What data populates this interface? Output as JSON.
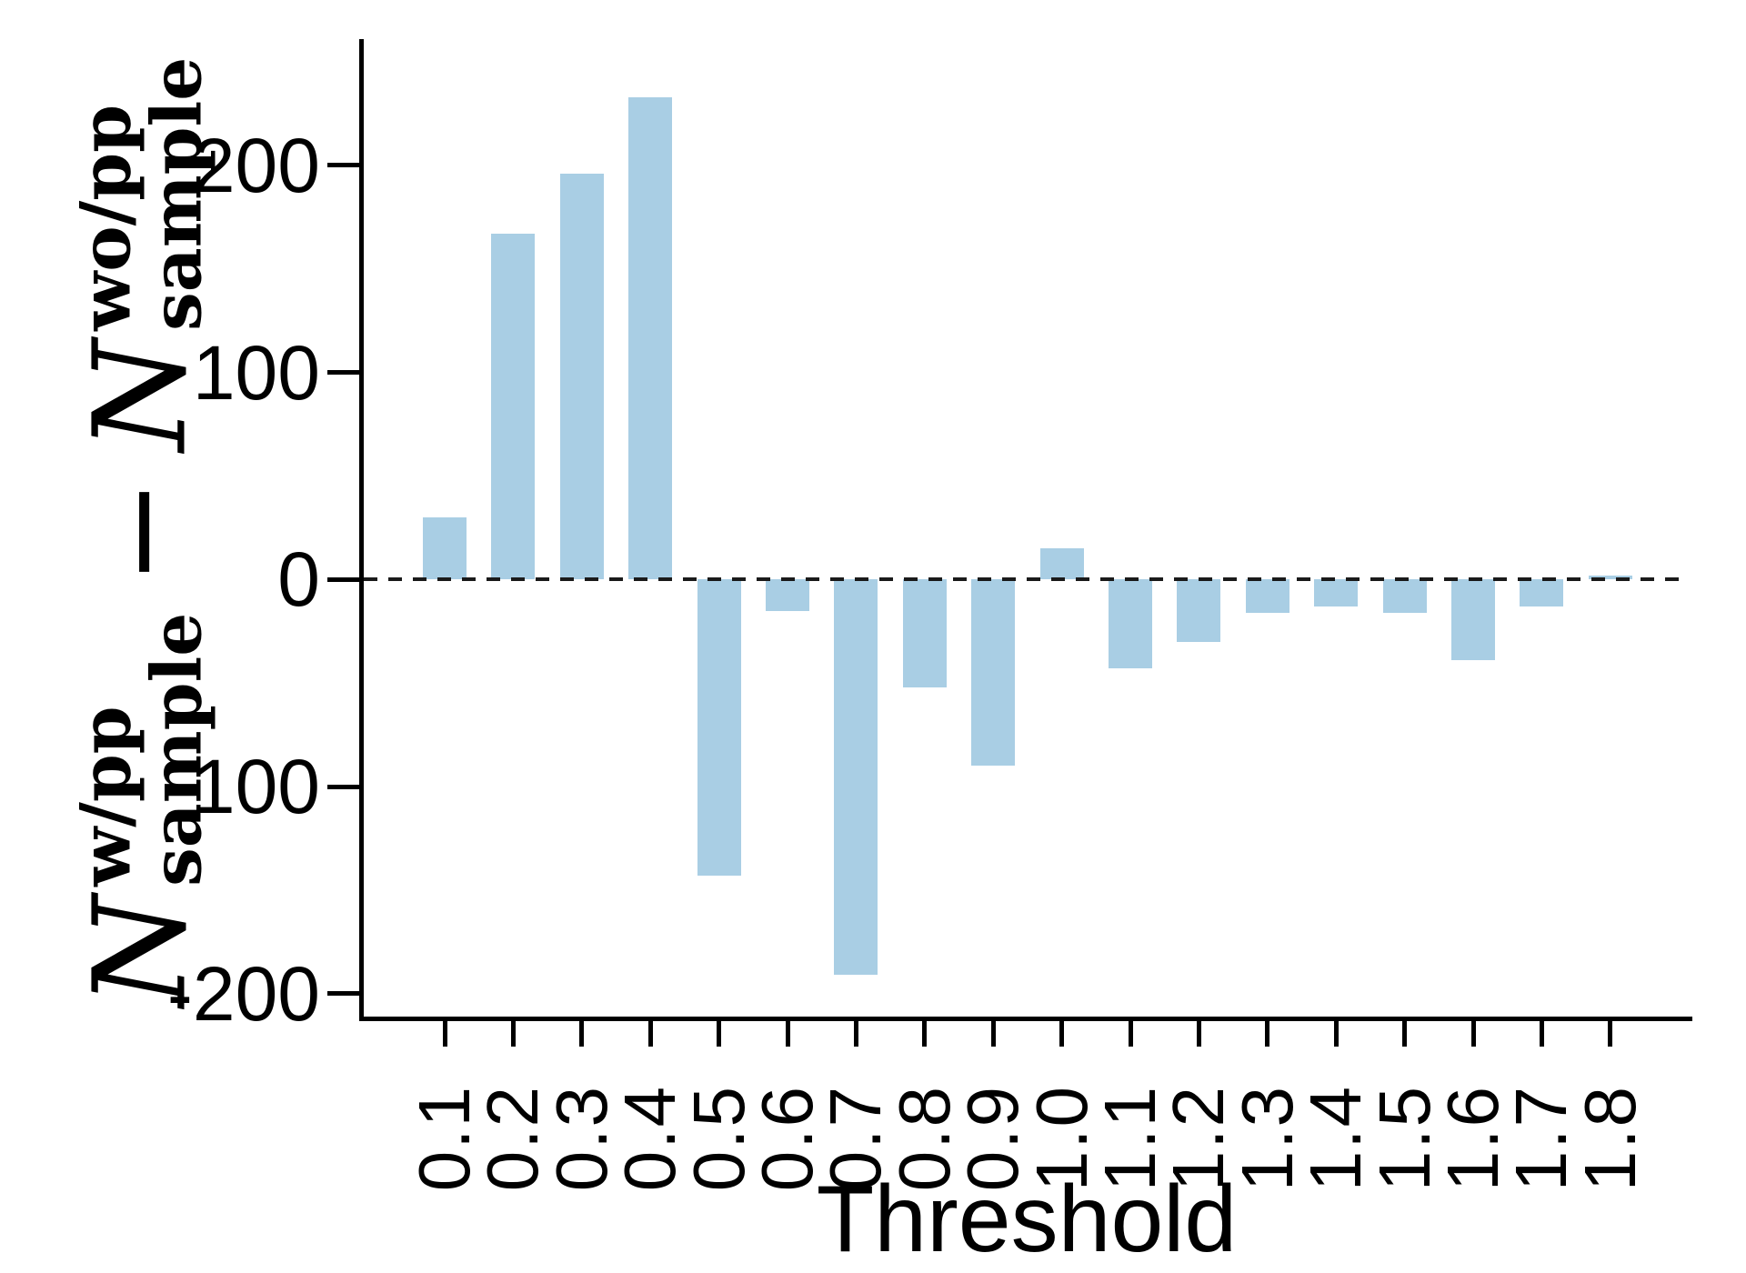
{
  "figure": {
    "background": "#ffffff",
    "bar_color": "#a9cee4",
    "axis_color": "#000000",
    "zero_line_color": "#1a1a1a"
  },
  "chart_data": {
    "type": "bar",
    "title": "",
    "xlabel": "Threshold",
    "ylabel": "N^{w/pp}_{sample} - N^{wo/pp}_{sample}",
    "ylabel_parts": {
      "term1_base": "N",
      "term1_sup": "w/pp",
      "term1_sub": "sample",
      "minus": "−",
      "term2_base": "N",
      "term2_sup": "wo/pp",
      "term2_sub": "sample"
    },
    "categories": [
      "0.1",
      "0.2",
      "0.3",
      "0.4",
      "0.5",
      "0.6",
      "0.7",
      "0.8",
      "0.9",
      "1.0",
      "1.1",
      "1.2",
      "1.3",
      "1.4",
      "1.5",
      "1.6",
      "1.7",
      "1.8"
    ],
    "values": [
      30,
      167,
      196,
      233,
      -143,
      -15,
      -191,
      -52,
      -90,
      15,
      -43,
      -30,
      -16,
      -13,
      -16,
      -39,
      -13,
      2
    ],
    "y_ticks": [
      200,
      100,
      0,
      -100,
      -200
    ],
    "ylim": [
      -211,
      261
    ],
    "zero_line_dashed": true,
    "grid": false,
    "legend": false
  }
}
